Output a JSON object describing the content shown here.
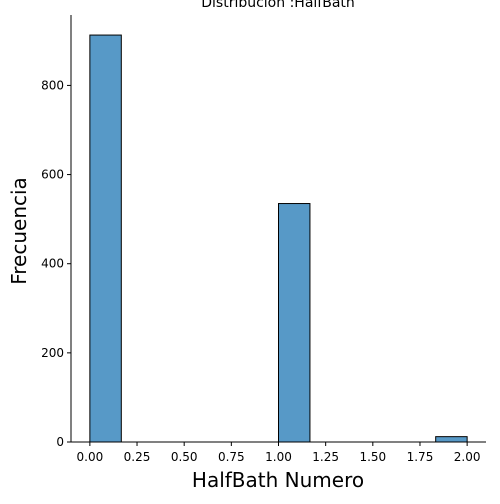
{
  "chart_data": {
    "type": "bar",
    "title": "Distribución :HalfBath",
    "xlabel": "HalfBath Numero",
    "ylabel": "Frecuencia",
    "bins": [
      {
        "start": 0.0,
        "end": 0.1667,
        "count": 913
      },
      {
        "start": 1.0,
        "end": 1.1667,
        "count": 535
      },
      {
        "start": 1.8333,
        "end": 2.0,
        "count": 12
      }
    ],
    "xlim": [
      -0.1,
      2.1
    ],
    "ylim": [
      0,
      958
    ],
    "xticks": [
      0.0,
      0.25,
      0.5,
      0.75,
      1.0,
      1.25,
      1.5,
      1.75,
      2.0
    ],
    "xtick_labels": [
      "0.00",
      "0.25",
      "0.50",
      "0.75",
      "1.00",
      "1.25",
      "1.50",
      "1.75",
      "2.00"
    ],
    "yticks": [
      0,
      200,
      400,
      600,
      800
    ],
    "ytick_labels": [
      "0",
      "200",
      "400",
      "600",
      "800"
    ],
    "grid": false,
    "bar_color": "#5799c7",
    "edge_color": "#000000"
  }
}
